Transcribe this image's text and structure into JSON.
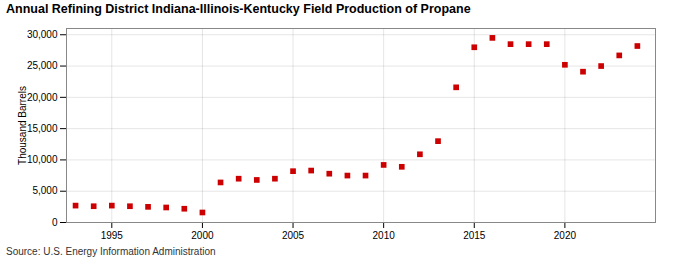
{
  "chart_data": {
    "type": "scatter",
    "title": "Annual Refining District Indiana-Illinois-Kentucky Field Production of Propane",
    "ylabel": "Thousand Barrels",
    "source": "Source: U.S. Energy Information Administration",
    "color": "#cc0000",
    "marker": "square",
    "grid": true,
    "xlim": [
      1992.5,
      2025
    ],
    "ylim": [
      0,
      31000
    ],
    "xticks": [
      1995,
      2000,
      2005,
      2010,
      2015,
      2020
    ],
    "yticks": [
      0,
      {
        "value": 5000,
        "label": "5,000"
      },
      {
        "value": 10000,
        "label": "10,000"
      },
      {
        "value": 15000,
        "label": "15,000"
      },
      {
        "value": 20000,
        "label": "20,000"
      },
      {
        "value": 25000,
        "label": "25,000"
      },
      {
        "value": 30000,
        "label": "30,000"
      }
    ],
    "x": [
      1993,
      1994,
      1995,
      1996,
      1997,
      1998,
      1999,
      2000,
      2001,
      2002,
      2003,
      2004,
      2005,
      2006,
      2007,
      2008,
      2009,
      2010,
      2011,
      2012,
      2013,
      2014,
      2015,
      2016,
      2017,
      2018,
      2019,
      2020,
      2021,
      2022,
      2023,
      2024
    ],
    "values": [
      2700,
      2600,
      2700,
      2600,
      2500,
      2400,
      2200,
      1600,
      6400,
      7000,
      6800,
      7000,
      8200,
      8300,
      7800,
      7500,
      7500,
      9200,
      8900,
      10900,
      13000,
      21600,
      28000,
      29500,
      28500,
      28500,
      28500,
      25200,
      24100,
      25000,
      26700,
      28200
    ]
  }
}
